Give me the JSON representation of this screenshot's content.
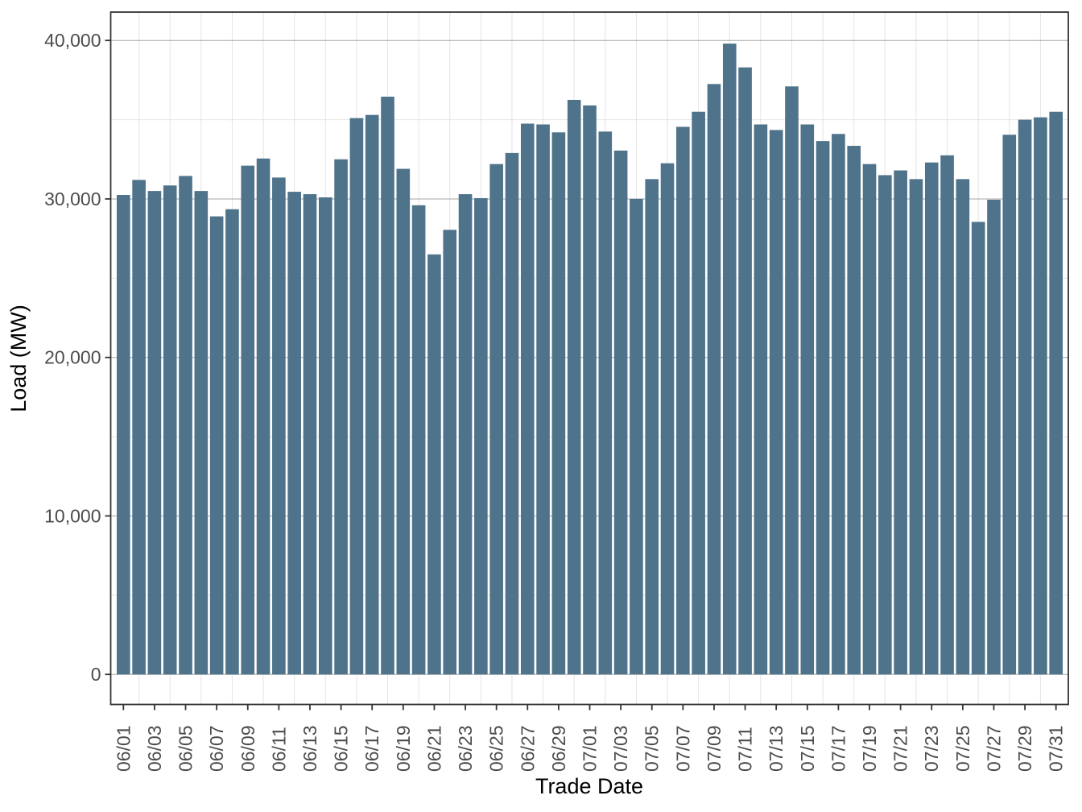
{
  "figure": {
    "kind": "bar-chart-panel"
  },
  "colors": {
    "bar": "#4e738a",
    "grid_major": "#a6a6a6",
    "grid_minor": "#e4e4e4",
    "axis_text": "#4d4d4d",
    "axis_title": "#000000",
    "panel_border": "#333333",
    "tick_mark": "#333333",
    "background": "#ffffff"
  },
  "chart_data": {
    "type": "bar",
    "title": "",
    "xlabel": "Trade Date",
    "ylabel": "Load (MW)",
    "legend": "none",
    "grid": "major-and-minor",
    "panel_border": true,
    "bar_color": "#4e738a",
    "ylim": [
      0,
      41800
    ],
    "y_major_ticks": [
      0,
      10000,
      20000,
      30000,
      40000
    ],
    "y_tick_labels": [
      "0",
      "10,000",
      "20,000",
      "30,000",
      "40,000"
    ],
    "y_minor_ticks": [
      5000,
      15000,
      25000,
      35000
    ],
    "x_label_every": 2,
    "categories": [
      "06/01",
      "06/02",
      "06/03",
      "06/04",
      "06/05",
      "06/06",
      "06/07",
      "06/08",
      "06/09",
      "06/10",
      "06/11",
      "06/12",
      "06/13",
      "06/14",
      "06/15",
      "06/16",
      "06/17",
      "06/18",
      "06/19",
      "06/20",
      "06/21",
      "06/22",
      "06/23",
      "06/24",
      "06/25",
      "06/26",
      "06/27",
      "06/28",
      "06/29",
      "06/30",
      "07/01",
      "07/02",
      "07/03",
      "07/04",
      "07/05",
      "07/06",
      "07/07",
      "07/08",
      "07/09",
      "07/10",
      "07/11",
      "07/12",
      "07/13",
      "07/14",
      "07/15",
      "07/16",
      "07/17",
      "07/18",
      "07/19",
      "07/20",
      "07/21",
      "07/22",
      "07/23",
      "07/24",
      "07/25",
      "07/26",
      "07/27",
      "07/28",
      "07/29",
      "07/30",
      "07/31"
    ],
    "values": [
      30250,
      31200,
      30500,
      30850,
      31450,
      30500,
      28900,
      29350,
      32100,
      32550,
      31350,
      30450,
      30300,
      30100,
      32500,
      35100,
      35300,
      36450,
      31900,
      29600,
      26500,
      28050,
      30300,
      30050,
      32200,
      32900,
      34750,
      34700,
      34200,
      36250,
      35900,
      34250,
      33050,
      30000,
      31250,
      32250,
      34550,
      35500,
      37250,
      39800,
      38300,
      34700,
      34350,
      37100,
      34700,
      33650,
      34100,
      33350,
      32200,
      31500,
      31800,
      31250,
      32300,
      32750,
      31250,
      28550,
      29950,
      34050,
      35000,
      35150,
      35500
    ]
  }
}
